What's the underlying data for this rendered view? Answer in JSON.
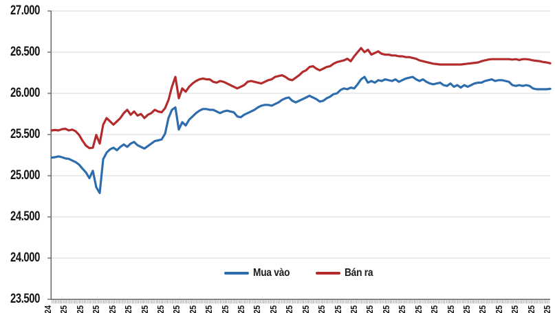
{
  "chart_data": {
    "type": "line",
    "title": "",
    "xlabel": "",
    "ylabel": "",
    "grid": true,
    "legend_position": "bottom-center",
    "y_axis": {
      "min": 23500,
      "max": 27000,
      "step": 500,
      "tick_labels": [
        "23.500",
        "24.000",
        "24.500",
        "25.000",
        "25.500",
        "26.000",
        "26.500",
        "27.000"
      ]
    },
    "x_axis": {
      "tick_labels": [
        "24",
        "25",
        "25",
        "25",
        "25",
        "25",
        "25",
        "25",
        "25",
        "25",
        "25",
        "25",
        "25",
        "25",
        "25",
        "25",
        "25",
        "25",
        "25",
        "25",
        "25",
        "25",
        "25",
        "25",
        "25",
        "25",
        "25",
        "25",
        "25",
        "25",
        "25",
        "25"
      ],
      "minor_ticks": "daily"
    },
    "colors": {
      "grid": "#d9d9d9",
      "axis": "#6e6e6e",
      "minor_tick": "#8f8f8f",
      "text": "#141414",
      "background": "#ffffff"
    },
    "series": [
      {
        "name": "Mua vào",
        "color": "#2e6dad",
        "values": [
          25220,
          25225,
          25235,
          25225,
          25210,
          25205,
          25185,
          25165,
          25135,
          25085,
          25040,
          24970,
          25060,
          24860,
          24790,
          25200,
          25280,
          25320,
          25340,
          25310,
          25350,
          25380,
          25350,
          25390,
          25410,
          25370,
          25350,
          25330,
          25360,
          25390,
          25420,
          25430,
          25440,
          25510,
          25700,
          25800,
          25830,
          25560,
          25650,
          25610,
          25680,
          25720,
          25760,
          25790,
          25810,
          25810,
          25800,
          25800,
          25780,
          25760,
          25780,
          25790,
          25780,
          25770,
          25720,
          25710,
          25740,
          25760,
          25780,
          25800,
          25830,
          25850,
          25860,
          25860,
          25850,
          25870,
          25890,
          25920,
          25940,
          25950,
          25910,
          25890,
          25910,
          25930,
          25950,
          25970,
          25950,
          25930,
          25900,
          25910,
          25940,
          25960,
          25990,
          26000,
          26040,
          26060,
          26050,
          26070,
          26060,
          26110,
          26170,
          26200,
          26130,
          26150,
          26130,
          26160,
          26150,
          26170,
          26160,
          26150,
          26170,
          26140,
          26160,
          26180,
          26190,
          26200,
          26170,
          26150,
          26170,
          26140,
          26120,
          26110,
          26120,
          26130,
          26100,
          26090,
          26120,
          26080,
          26100,
          26070,
          26100,
          26080,
          26100,
          26120,
          26130,
          26130,
          26150,
          26160,
          26170,
          26150,
          26160,
          26160,
          26150,
          26140,
          26100,
          26090,
          26100,
          26090,
          26100,
          26090,
          26060,
          26050,
          26050,
          26050,
          26050,
          26055
        ]
      },
      {
        "name": "Bán ra",
        "color": "#b32b2b",
        "values": [
          25550,
          25555,
          25550,
          25565,
          25570,
          25550,
          25560,
          25540,
          25495,
          25425,
          25365,
          25335,
          25340,
          25495,
          25390,
          25620,
          25700,
          25660,
          25620,
          25660,
          25700,
          25760,
          25800,
          25740,
          25780,
          25730,
          25750,
          25700,
          25740,
          25760,
          25800,
          25780,
          25770,
          25820,
          25920,
          26080,
          26200,
          25940,
          26060,
          26020,
          26080,
          26120,
          26150,
          26170,
          26180,
          26170,
          26170,
          26140,
          26130,
          26150,
          26140,
          26120,
          26100,
          26080,
          26060,
          26080,
          26100,
          26140,
          26150,
          26140,
          26130,
          26120,
          26140,
          26160,
          26170,
          26200,
          26210,
          26220,
          26200,
          26170,
          26160,
          26190,
          26220,
          26260,
          26280,
          26320,
          26330,
          26300,
          26280,
          26300,
          26320,
          26330,
          26360,
          26380,
          26390,
          26400,
          26420,
          26390,
          26450,
          26500,
          26550,
          26500,
          26530,
          26470,
          26490,
          26510,
          26480,
          26470,
          26470,
          26460,
          26460,
          26450,
          26450,
          26440,
          26440,
          26430,
          26420,
          26400,
          26390,
          26380,
          26370,
          26360,
          26355,
          26350,
          26350,
          26350,
          26350,
          26350,
          26350,
          26350,
          26355,
          26360,
          26365,
          26370,
          26375,
          26390,
          26400,
          26410,
          26415,
          26415,
          26415,
          26415,
          26415,
          26415,
          26410,
          26415,
          26405,
          26415,
          26415,
          26410,
          26400,
          26395,
          26390,
          26380,
          26375,
          26365
        ]
      }
    ]
  }
}
